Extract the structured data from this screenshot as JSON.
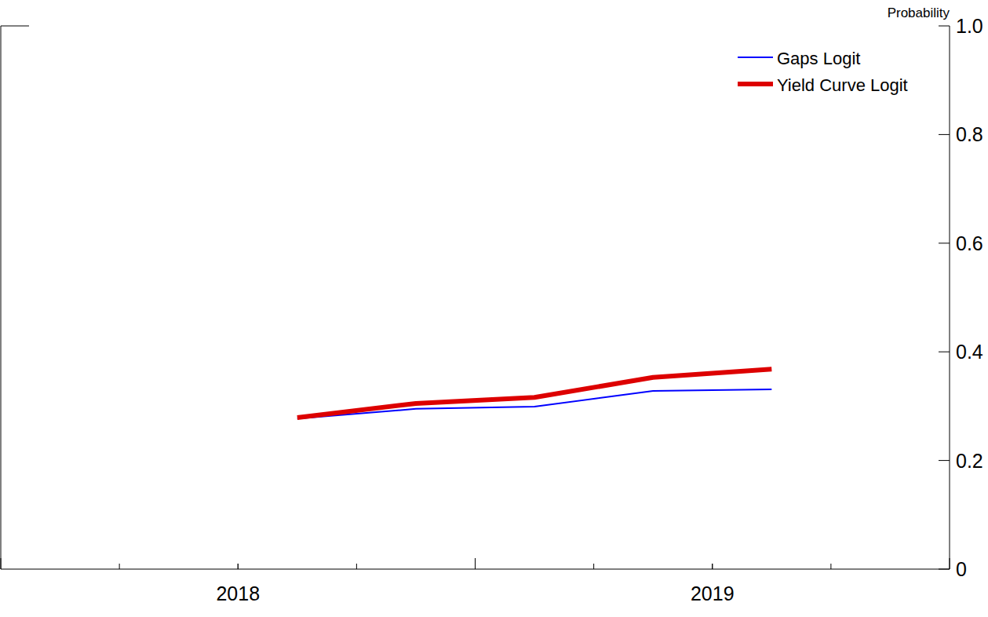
{
  "chart_data": {
    "type": "line",
    "y_label": "Probability",
    "x": [
      2018.625,
      2018.875,
      2019.125,
      2019.375,
      2019.625
    ],
    "series": [
      {
        "name": "Gaps Logit",
        "color": "#0000ff",
        "values": [
          0.277,
          0.295,
          0.299,
          0.328,
          0.331
        ]
      },
      {
        "name": "Yield Curve Logit",
        "color": "#dd0000",
        "values": [
          0.279,
          0.305,
          0.316,
          0.353,
          0.368
        ]
      }
    ],
    "xlim": [
      2018,
      2020
    ],
    "xticks": [
      {
        "value": 2018.5,
        "label": "2018"
      },
      {
        "value": 2019.5,
        "label": "2019"
      }
    ],
    "ylim": [
      0,
      1
    ],
    "yticks": [
      0,
      0.2,
      0.4,
      0.6,
      0.8,
      {
        "value": 1,
        "label": "1.0"
      }
    ],
    "grid": false,
    "legend": "top-right"
  }
}
